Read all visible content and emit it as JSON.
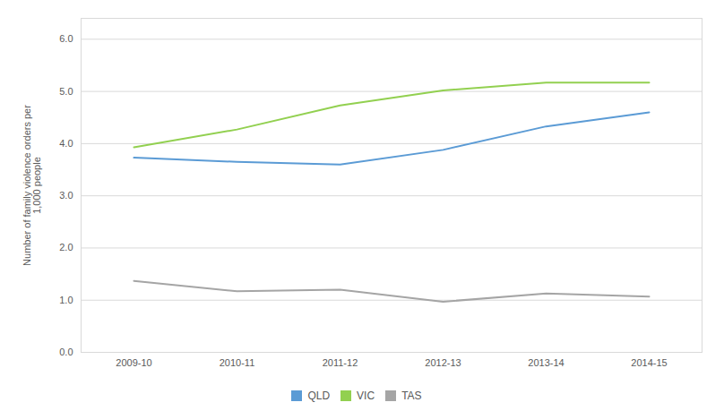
{
  "chart_data": {
    "type": "line",
    "ylabel": "Number of family violence orders per\n1,000 people",
    "categories": [
      "2009-10",
      "2010-11",
      "2011-12",
      "2012-13",
      "2013-14",
      "2014-15"
    ],
    "series": [
      {
        "name": "QLD",
        "color": "#5B9BD5",
        "values": [
          3.73,
          3.65,
          3.6,
          3.88,
          4.33,
          4.6
        ]
      },
      {
        "name": "VIC",
        "color": "#92D050",
        "values": [
          3.93,
          4.27,
          4.73,
          5.02,
          5.17,
          5.17
        ]
      },
      {
        "name": "TAS",
        "color": "#A5A5A5",
        "values": [
          1.37,
          1.17,
          1.2,
          0.97,
          1.13,
          1.07
        ]
      }
    ],
    "ylim": [
      0.0,
      6.4
    ],
    "yticks": [
      {
        "value": 0.0,
        "label": "0.0"
      },
      {
        "value": 1.0,
        "label": "1.0"
      },
      {
        "value": 2.0,
        "label": "2.0"
      },
      {
        "value": 3.0,
        "label": "3.0"
      },
      {
        "value": 4.0,
        "label": "4.0"
      },
      {
        "value": 5.0,
        "label": "5.0"
      },
      {
        "value": 6.0,
        "label": "6.0"
      }
    ],
    "grid": true,
    "legend": "bottom"
  }
}
